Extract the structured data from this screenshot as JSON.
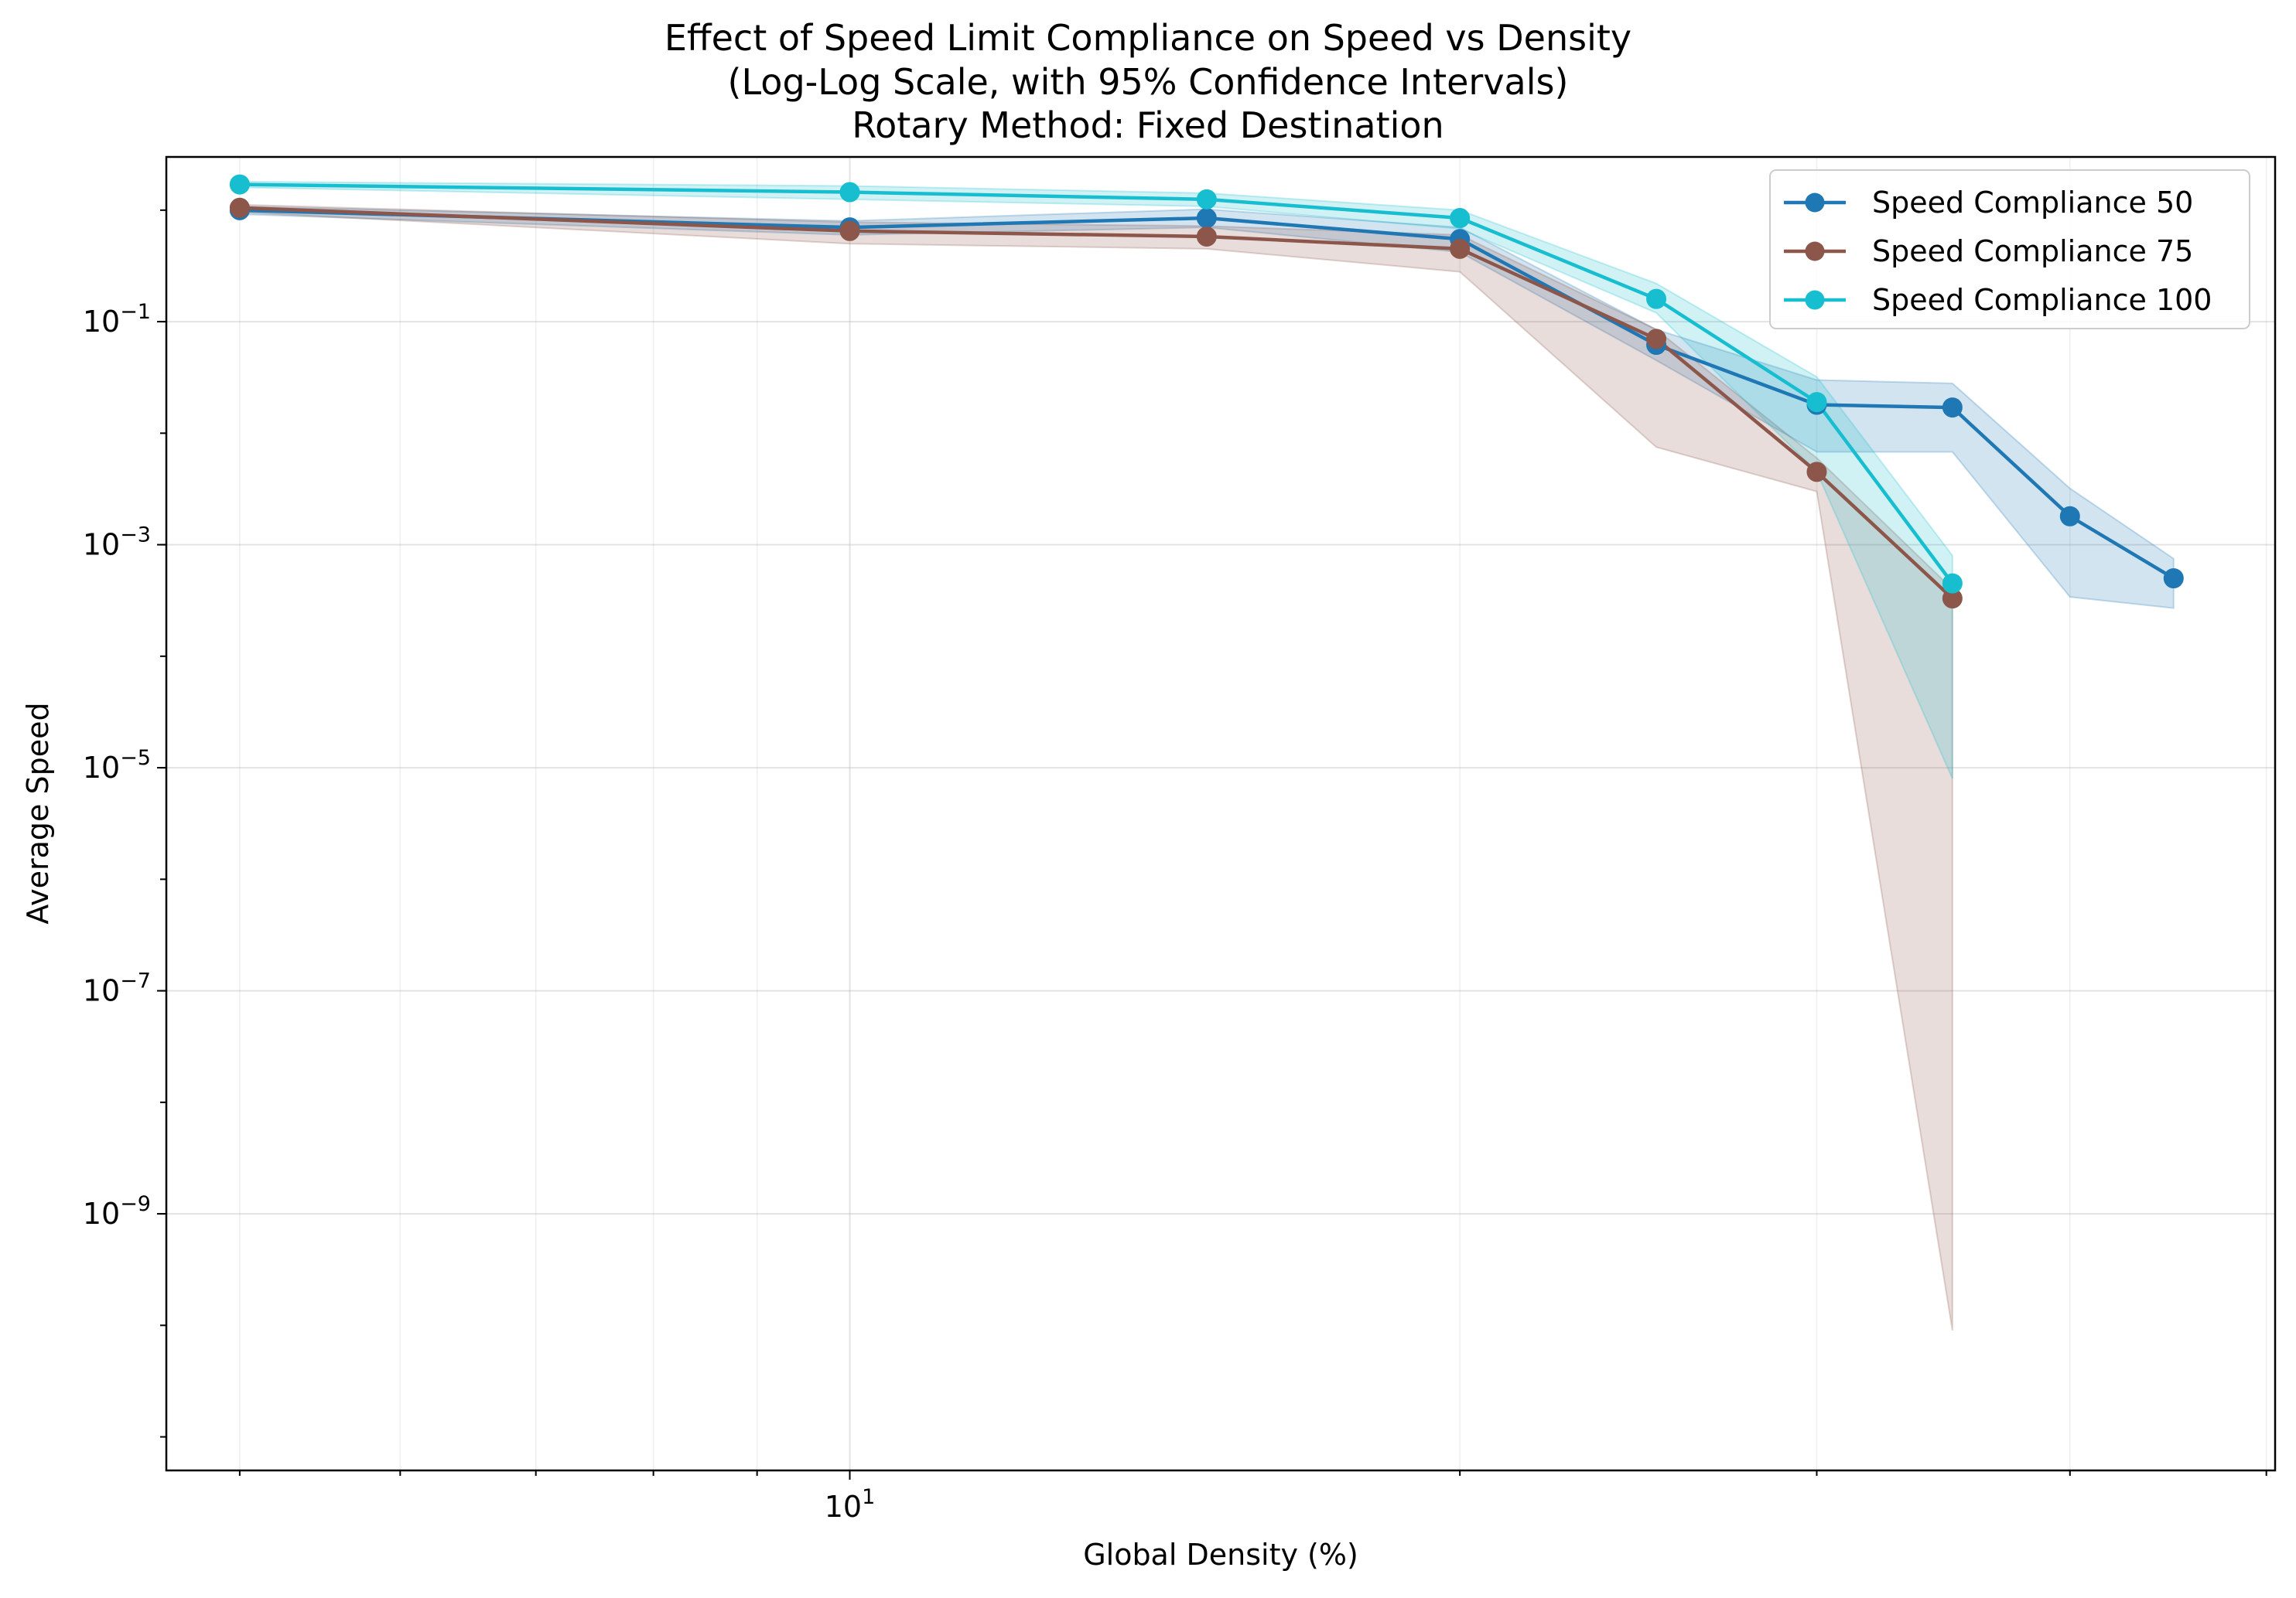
{
  "chart_data": {
    "type": "line",
    "title": [
      "Effect of Speed Limit Compliance on Speed vs Density",
      "(Log-Log Scale, with 95% Confidence Intervals)",
      "Rotary Method: Fixed Destination"
    ],
    "xlabel": "Global Density (%)",
    "ylabel": "Average Speed",
    "xscale": "log",
    "yscale": "log",
    "xlim": [
      4.6,
      50.5
    ],
    "ylim": [
      5e-12,
      3.0
    ],
    "grid": true,
    "legend_position": "top-right",
    "x_ticks": [
      {
        "value": 10,
        "base": "10",
        "exp": "1"
      }
    ],
    "y_ticks": [
      {
        "value": 0.1,
        "base": "10",
        "exp": "−1"
      },
      {
        "value": 0.001,
        "base": "10",
        "exp": "−3"
      },
      {
        "value": 1e-05,
        "base": "10",
        "exp": "−5"
      },
      {
        "value": 1e-07,
        "base": "10",
        "exp": "−7"
      },
      {
        "value": 1e-09,
        "base": "10",
        "exp": "−9"
      }
    ],
    "series": [
      {
        "name": "Speed Compliance 50",
        "color": "#1f77b4",
        "x": [
          5,
          10,
          15,
          20,
          25,
          30,
          35,
          40,
          45
        ],
        "y": [
          1.0,
          0.7,
          0.85,
          0.55,
          0.062,
          0.018,
          0.017,
          0.0018,
          0.0005
        ],
        "ci_lower": [
          0.92,
          0.6,
          0.7,
          0.42,
          0.045,
          0.0068,
          0.0068,
          0.00034,
          0.00027
        ],
        "ci_upper": [
          1.08,
          0.8,
          1.02,
          0.7,
          0.085,
          0.03,
          0.028,
          0.0032,
          0.00075
        ]
      },
      {
        "name": "Speed Compliance 75",
        "color": "#8c564b",
        "x": [
          5,
          10,
          15,
          20,
          25,
          30,
          35
        ],
        "y": [
          1.05,
          0.65,
          0.58,
          0.45,
          0.07,
          0.0045,
          0.00033
        ],
        "ci_lower": [
          0.96,
          0.5,
          0.45,
          0.28,
          0.0075,
          0.003,
          9e-11
        ],
        "ci_upper": [
          1.12,
          0.78,
          0.72,
          0.6,
          0.085,
          0.006,
          0.0004
        ]
      },
      {
        "name": "Speed Compliance 100",
        "color": "#17becf",
        "x": [
          5,
          10,
          15,
          20,
          25,
          30,
          35
        ],
        "y": [
          1.7,
          1.45,
          1.25,
          0.85,
          0.16,
          0.019,
          0.00045
        ],
        "ci_lower": [
          1.6,
          1.25,
          1.08,
          0.68,
          0.12,
          0.0045,
          8e-06
        ],
        "ci_upper": [
          1.8,
          1.65,
          1.42,
          1.0,
          0.22,
          0.032,
          0.0008
        ]
      }
    ]
  }
}
